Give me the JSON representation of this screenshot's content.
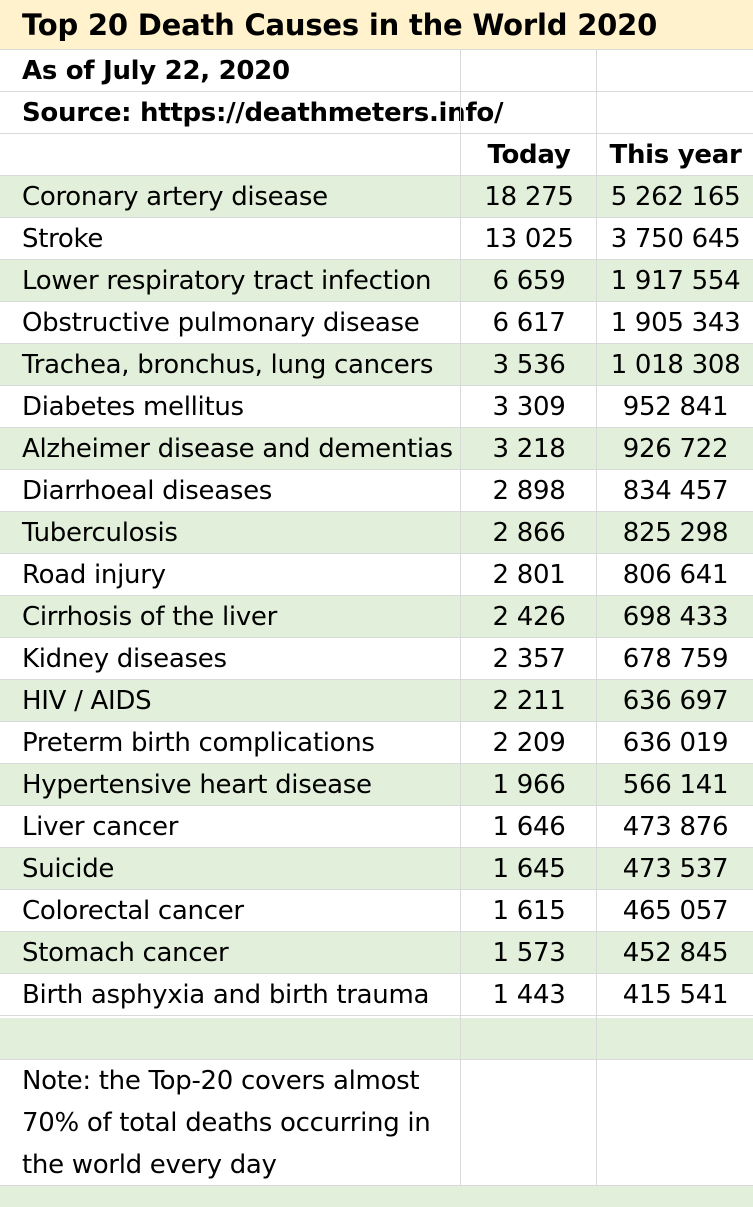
{
  "title": "Top 20 Death Causes in the World 2020",
  "date_line": "As of July 22, 2020",
  "source_line": "Source: https://deathmeters.info/",
  "columns": {
    "today": "Today",
    "this_year": "This year"
  },
  "rows": [
    {
      "cause": "Coronary artery disease",
      "today": "18 275",
      "this_year": "5 262 165"
    },
    {
      "cause": "Stroke",
      "today": "13 025",
      "this_year": "3 750 645"
    },
    {
      "cause": "Lower respiratory tract infection",
      "today": "6 659",
      "this_year": "1 917 554"
    },
    {
      "cause": "Obstructive pulmonary disease",
      "today": "6 617",
      "this_year": "1 905 343"
    },
    {
      "cause": "Trachea, bronchus, lung cancers",
      "today": "3 536",
      "this_year": "1 018 308"
    },
    {
      "cause": "Diabetes mellitus",
      "today": "3 309",
      "this_year": "952 841"
    },
    {
      "cause": "Alzheimer disease and dementias",
      "today": "3 218",
      "this_year": "926 722"
    },
    {
      "cause": "Diarrhoeal diseases",
      "today": "2 898",
      "this_year": "834 457"
    },
    {
      "cause": "Tuberculosis",
      "today": "2 866",
      "this_year": "825 298"
    },
    {
      "cause": "Road injury",
      "today": "2 801",
      "this_year": "806 641"
    },
    {
      "cause": "Cirrhosis of the liver",
      "today": "2 426",
      "this_year": "698 433"
    },
    {
      "cause": "Kidney diseases",
      "today": "2 357",
      "this_year": "678 759"
    },
    {
      "cause": "HIV / AIDS",
      "today": "2 211",
      "this_year": "636 697"
    },
    {
      "cause": "Preterm birth complications",
      "today": "2 209",
      "this_year": "636 019"
    },
    {
      "cause": "Hypertensive heart disease",
      "today": "1 966",
      "this_year": "566 141"
    },
    {
      "cause": "Liver cancer",
      "today": "1 646",
      "this_year": "473 876"
    },
    {
      "cause": "Suicide",
      "today": "1 645",
      "this_year": "473 537"
    },
    {
      "cause": "Colorectal cancer",
      "today": "1 615",
      "this_year": "465 057"
    },
    {
      "cause": "Stomach cancer",
      "today": "1 573",
      "this_year": "452 845"
    },
    {
      "cause": "Birth asphyxia and birth trauma",
      "today": "1 443",
      "this_year": "415 541"
    }
  ],
  "note": "Note: the Top-20 covers almost 70% of total deaths occurring in the world every day"
}
